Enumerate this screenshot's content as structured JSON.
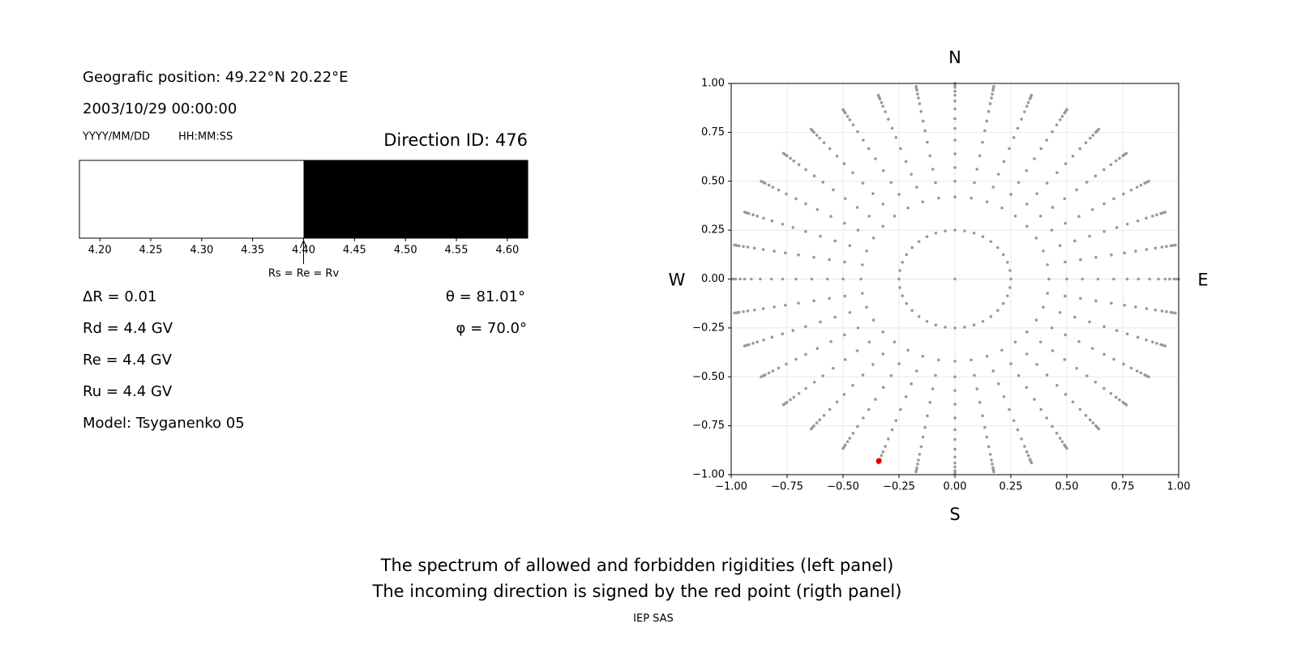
{
  "info": {
    "position": "Geografic position: 49.22°N 20.22°E",
    "datetime": "2003/10/29 00:00:00",
    "date_format": "YYYY/MM/DD",
    "time_format": "HH:MM:SS",
    "direction": "Direction ID: 476",
    "delta_r": "ΔR = 0.01",
    "rd": "Rd = 4.4 GV",
    "re": "Re = 4.4 GV",
    "ru": "Ru = 4.4 GV",
    "model": "Model: Tsyganenko 05",
    "theta": "θ = 81.01°",
    "phi": "φ = 70.0°",
    "caption_1": "The spectrum of allowed and forbidden rigidities (left panel)",
    "caption_2": "The incoming direction is signed by the red point (rigth panel)",
    "credit": "IEP SAS"
  },
  "chart_data": [
    {
      "type": "spectrum",
      "xlim": [
        4.18,
        4.62
      ],
      "xticks": [
        {
          "value": 4.2,
          "label": "4.20"
        },
        {
          "value": 4.25,
          "label": "4.25"
        },
        {
          "value": 4.3,
          "label": "4.30"
        },
        {
          "value": 4.35,
          "label": "4.35"
        },
        {
          "value": 4.4,
          "label": "4.40"
        },
        {
          "value": 4.45,
          "label": "4.45"
        },
        {
          "value": 4.5,
          "label": "4.50"
        },
        {
          "value": 4.55,
          "label": "4.55"
        },
        {
          "value": 4.6,
          "label": "4.60"
        }
      ],
      "segments": [
        {
          "x": [
            4.18,
            4.4
          ],
          "color": "#ffffff"
        },
        {
          "x": [
            4.4,
            4.62
          ],
          "color": "#000000"
        }
      ],
      "annotation": {
        "x": 4.4,
        "text": "Rs = Re = Rv"
      }
    },
    {
      "type": "scatter",
      "xlim": [
        -1,
        1
      ],
      "ylim": [
        -1,
        1
      ],
      "xticks": [
        {
          "value": -1,
          "label": "−1.00"
        },
        {
          "value": -0.75,
          "label": "−0.75"
        },
        {
          "value": -0.5,
          "label": "−0.50"
        },
        {
          "value": -0.25,
          "label": "−0.25"
        },
        {
          "value": 0,
          "label": "0.00"
        },
        {
          "value": 0.25,
          "label": "0.25"
        },
        {
          "value": 0.5,
          "label": "0.50"
        },
        {
          "value": 0.75,
          "label": "0.75"
        },
        {
          "value": 1,
          "label": "1.00"
        }
      ],
      "yticks": [
        {
          "value": -1,
          "label": "−1.00"
        },
        {
          "value": -0.75,
          "label": "−0.75"
        },
        {
          "value": -0.5,
          "label": "−0.50"
        },
        {
          "value": -0.25,
          "label": "−0.25"
        },
        {
          "value": 0,
          "label": "0.00"
        },
        {
          "value": 0.25,
          "label": "0.25"
        },
        {
          "value": 0.5,
          "label": "0.50"
        },
        {
          "value": 0.75,
          "label": "0.75"
        },
        {
          "value": 1,
          "label": "1.00"
        }
      ],
      "grid": true,
      "compass": {
        "N": "N",
        "S": "S",
        "E": "E",
        "W": "W"
      },
      "grid_points": {
        "color": "#999999",
        "azimuths": [
          0,
          10,
          20,
          30,
          40,
          50,
          60,
          70,
          80,
          90,
          100,
          110,
          120,
          130,
          140,
          150,
          160,
          170,
          180,
          190,
          200,
          210,
          220,
          230,
          240,
          250,
          260,
          270,
          280,
          290,
          300,
          310,
          320,
          330,
          340,
          350
        ],
        "radii": [
          0.25,
          0.42,
          0.5,
          0.57,
          0.64,
          0.71,
          0.77,
          0.82,
          0.87,
          0.91,
          0.94,
          0.96,
          0.98,
          0.99,
          1.0
        ]
      },
      "center_point": {
        "x": 0,
        "y": 0
      },
      "highlight": {
        "x": -0.34,
        "y": -0.93,
        "color": "#e00000"
      }
    }
  ]
}
